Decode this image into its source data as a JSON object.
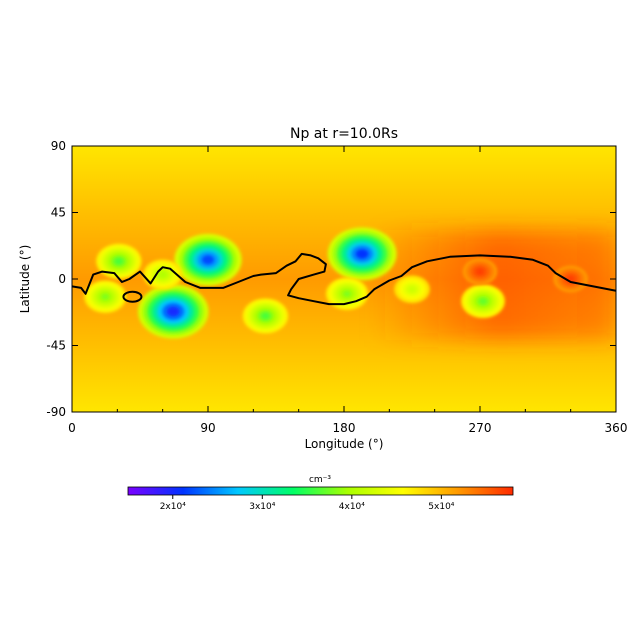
{
  "chart_data": {
    "type": "heatmap",
    "title": "Np at r=10.0Rs",
    "xlabel": "Longitude (°)",
    "ylabel": "Latitude (°)",
    "xlim": [
      0,
      360
    ],
    "ylim": [
      -90,
      90
    ],
    "xticks": [
      0,
      90,
      180,
      270,
      360
    ],
    "xtick_labels": [
      "0",
      "90",
      "180",
      "270",
      "360"
    ],
    "yticks": [
      90,
      45,
      0,
      -45,
      -90
    ],
    "ytick_labels": [
      "90",
      "45",
      "0",
      "-45",
      "-90"
    ],
    "grid": false,
    "colormap": "rainbow (purple-blue-cyan-green-yellow-red)",
    "colorbar": {
      "unit": "cm⁻³",
      "range": [
        15000,
        58000
      ],
      "ticks": [
        20000,
        30000,
        40000,
        50000
      ],
      "tick_labels": [
        "2x10⁴",
        "3x10⁴",
        "4x10⁴",
        "5x10⁴"
      ],
      "colors": [
        "#7a00ff",
        "#0033ff",
        "#00c8ff",
        "#00ff66",
        "#aaff00",
        "#ffff00",
        "#ff9900",
        "#ff2a00"
      ]
    },
    "background_level": 50000,
    "features": [
      {
        "kind": "low",
        "lon": 90,
        "lat": 13,
        "value": 22000
      },
      {
        "kind": "low",
        "lon": 67,
        "lat": -22,
        "value": 20000
      },
      {
        "kind": "low",
        "lon": 192,
        "lat": 17,
        "value": 21000
      },
      {
        "kind": "low",
        "lon": 31,
        "lat": 12,
        "value": 36000
      },
      {
        "kind": "low",
        "lon": 22,
        "lat": -12,
        "value": 38000
      },
      {
        "kind": "low",
        "lon": 60,
        "lat": 3,
        "value": 40000
      },
      {
        "kind": "low",
        "lon": 128,
        "lat": -25,
        "value": 36000
      },
      {
        "kind": "low",
        "lon": 182,
        "lat": -10,
        "value": 38000
      },
      {
        "kind": "low",
        "lon": 225,
        "lat": -7,
        "value": 42000
      },
      {
        "kind": "low",
        "lon": 272,
        "lat": -15,
        "value": 37000
      },
      {
        "kind": "high",
        "lon": 270,
        "lat": 5,
        "value": 57000
      },
      {
        "kind": "high",
        "lon": 330,
        "lat": 0,
        "value": 57000
      }
    ],
    "neutral_line": {
      "lon": [
        0,
        6,
        9,
        14,
        20,
        28,
        33,
        38,
        45,
        52,
        57,
        60,
        65,
        75,
        85,
        100,
        110,
        120,
        125,
        135,
        142,
        148,
        152,
        158,
        163,
        168,
        167,
        160,
        150,
        145,
        143,
        150,
        160,
        170,
        180,
        188,
        195,
        200,
        210,
        218,
        225,
        235,
        250,
        270,
        290,
        305,
        315,
        320,
        330,
        345,
        360
      ],
      "lat": [
        -5,
        -6,
        -10,
        3,
        5,
        4,
        -2,
        0,
        5,
        -3,
        5,
        8,
        7,
        -2,
        -6,
        -6,
        -2,
        2,
        3,
        4,
        9,
        12,
        17,
        16,
        14,
        10,
        5,
        3,
        0,
        -7,
        -11,
        -13,
        -15,
        -17,
        -17,
        -15,
        -12,
        -7,
        -1,
        2,
        8,
        12,
        15,
        16,
        15,
        13,
        9,
        4,
        -2,
        -5,
        -8
      ]
    },
    "closed_contour": {
      "lon": 40,
      "lat": -12
    }
  }
}
